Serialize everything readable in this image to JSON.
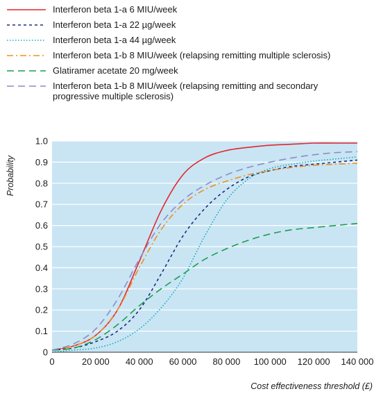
{
  "chart_data": {
    "type": "line",
    "title": "",
    "xlabel": "Cost effectiveness threshold (£)",
    "ylabel": "Probability",
    "xlim": [
      0,
      140000
    ],
    "ylim": [
      0,
      1.0
    ],
    "xticks": [
      0,
      20000,
      40000,
      60000,
      80000,
      100000,
      120000,
      140000
    ],
    "xtick_labels": [
      "0",
      "20 000",
      "40 000",
      "60 000",
      "80 000",
      "100 000",
      "120 000",
      "140 000"
    ],
    "yticks": [
      0,
      0.1,
      0.2,
      0.3,
      0.4,
      0.5,
      0.6,
      0.7,
      0.8,
      0.9,
      1.0
    ],
    "ytick_labels": [
      "0",
      "0.1",
      "0.2",
      "0.3",
      "0.4",
      "0.5",
      "0.6",
      "0.7",
      "0.8",
      "0.9",
      "1.0"
    ],
    "grid": "horizontal",
    "background": "#c9e5f4",
    "legend_position": "top",
    "x": [
      0,
      10000,
      20000,
      30000,
      40000,
      50000,
      60000,
      70000,
      80000,
      90000,
      100000,
      110000,
      120000,
      130000,
      140000
    ],
    "series": [
      {
        "name": "Interferon beta 1-a 6 MIU/week",
        "color": "#e3262c",
        "dash": "solid",
        "values": [
          0.01,
          0.03,
          0.08,
          0.2,
          0.43,
          0.67,
          0.84,
          0.92,
          0.955,
          0.97,
          0.98,
          0.985,
          0.99,
          0.99,
          0.99
        ]
      },
      {
        "name": "Interferon beta 1-a 22 µg/week",
        "color": "#1f2a7a",
        "dash": "dash-short",
        "values": [
          0.01,
          0.02,
          0.05,
          0.1,
          0.2,
          0.37,
          0.55,
          0.68,
          0.77,
          0.83,
          0.86,
          0.88,
          0.89,
          0.9,
          0.91
        ]
      },
      {
        "name": "Interferon beta 1-a 44 µg/week",
        "color": "#13a9bd",
        "dash": "dotted",
        "values": [
          0.0,
          0.01,
          0.02,
          0.05,
          0.11,
          0.21,
          0.35,
          0.55,
          0.72,
          0.82,
          0.87,
          0.89,
          0.905,
          0.915,
          0.925
        ]
      },
      {
        "name": "Interferon beta 1-b 8 MIU/week (relapsing remitting multiple sclerosis)",
        "color": "#f08f1c",
        "dash": "dash-dot",
        "values": [
          0.01,
          0.03,
          0.08,
          0.2,
          0.4,
          0.58,
          0.7,
          0.77,
          0.81,
          0.84,
          0.86,
          0.875,
          0.885,
          0.89,
          0.895
        ]
      },
      {
        "name": "Glatiramer acetate 20 mg/week",
        "color": "#1a9e4a",
        "dash": "dash-long",
        "values": [
          0.01,
          0.02,
          0.06,
          0.13,
          0.22,
          0.3,
          0.37,
          0.44,
          0.49,
          0.53,
          0.56,
          0.58,
          0.59,
          0.6,
          0.61
        ]
      },
      {
        "name": "Interferon beta 1-b 8 MIU/week (relapsing remitting and secondary\n progressive multiple sclerosis)",
        "color": "#8c8cc6",
        "dash": "dash-long",
        "values": [
          0.01,
          0.04,
          0.11,
          0.25,
          0.44,
          0.61,
          0.72,
          0.79,
          0.84,
          0.875,
          0.9,
          0.92,
          0.935,
          0.945,
          0.95
        ]
      }
    ]
  }
}
